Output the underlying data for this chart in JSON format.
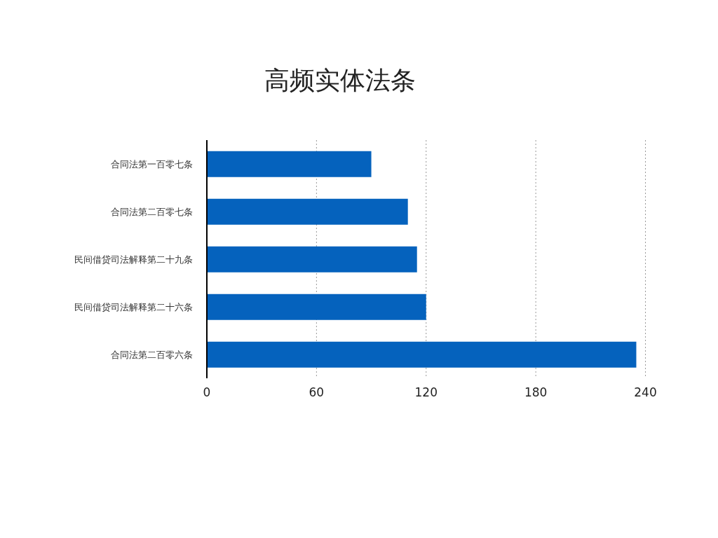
{
  "chart_data": {
    "type": "bar",
    "title": "高频实体法条",
    "orientation": "horizontal",
    "categories": [
      "合同法第一百零七条",
      "合同法第二百零七条",
      "民间借贷司法解释第二十九条",
      "民间借贷司法解释第二十六条",
      "合同法第二百零六条"
    ],
    "values": [
      90,
      110,
      115,
      120,
      235
    ],
    "color": "#0562bd",
    "xlim": [
      0,
      240
    ],
    "xticks": [
      0,
      60,
      120,
      180,
      240
    ],
    "grid": "x"
  }
}
